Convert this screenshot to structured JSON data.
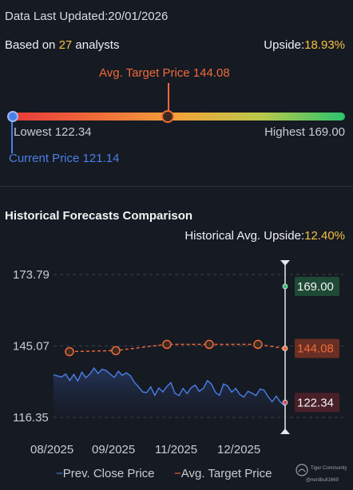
{
  "header": {
    "updated_label": "Data Last Updated:",
    "updated_value": "20/01/2026",
    "analysts_prefix": "Based on ",
    "analysts_count": "27",
    "analysts_suffix": " analysts",
    "upside_label": "Upside:",
    "upside_value": "18.93%"
  },
  "gauge": {
    "avg_target_label": "Avg. Target Price 144.08",
    "lowest_label": "Lowest 122.34",
    "highest_label": "Highest 169.00",
    "current_label": "Current Price 121.14",
    "low": 122.34,
    "high": 169.0,
    "avg_target": 144.08,
    "current": 121.14,
    "colors": {
      "low": "#e83a3a",
      "mid": "#f2a33a",
      "high": "#2bc46e",
      "current": "#4a7fe8",
      "target": "#f06a3a"
    }
  },
  "historical": {
    "title": "Historical Forecasts Comparison",
    "avg_upside_label": "Historical Avg. Upside:",
    "avg_upside_value": "12.40%"
  },
  "chart_data": {
    "type": "line",
    "y_ticks": [
      "173.79",
      "145.07",
      "116.35"
    ],
    "x_ticks": [
      "08/2025",
      "09/2025",
      "11/2025",
      "12/2025"
    ],
    "ylim": [
      116.35,
      173.79
    ],
    "series": [
      {
        "name": "Prev. Close Price",
        "color": "#4a7fe8",
        "values": [
          133.5,
          133.0,
          132.6,
          133.8,
          131.2,
          133.6,
          131.0,
          134.5,
          132.3,
          133.8,
          136.2,
          134.0,
          135.7,
          135.2,
          133.8,
          132.4,
          134.9,
          133.3,
          134.3,
          133.1,
          130.4,
          128.6,
          126.6,
          126.3,
          128.6,
          125.2,
          128.2,
          126.6,
          128.8,
          130.3,
          126.0,
          125.1,
          128.0,
          125.9,
          128.3,
          129.3,
          126.8,
          128.0,
          131.1,
          129.8,
          126.4,
          125.2,
          129.8,
          129.0,
          126.5,
          128.0,
          125.6,
          124.5,
          126.8,
          126.1,
          125.1,
          127.7,
          127.3,
          124.7,
          122.6,
          124.9,
          122.6,
          121.1
        ]
      },
      {
        "name": "Avg. Target Price",
        "color": "#f06a3a",
        "points": [
          {
            "x": "08/2025",
            "y": 142.8
          },
          {
            "x": "09/2025",
            "y": 143.2
          },
          {
            "x": "11/2025",
            "y": 145.7
          },
          {
            "x": "11/2025b",
            "y": 145.7
          },
          {
            "x": "12/2025",
            "y": 145.7
          },
          {
            "x": "01/2026",
            "y": 144.08
          }
        ]
      }
    ],
    "markers": [
      {
        "label": "169.00",
        "value": 169.0,
        "color": "#2bc46e"
      },
      {
        "label": "144.08",
        "value": 144.08,
        "color": "#f06a3a"
      },
      {
        "label": "122.34",
        "value": 122.34,
        "color": "#d04a5a"
      }
    ],
    "legend": [
      {
        "label": "Prev. Close Price",
        "color": "#4a7fe8"
      },
      {
        "label": "Avg. Target Price",
        "color": "#f06a3a"
      }
    ]
  },
  "watermark": {
    "brand": "Tiger Community",
    "user": "@nerdbull1669"
  }
}
